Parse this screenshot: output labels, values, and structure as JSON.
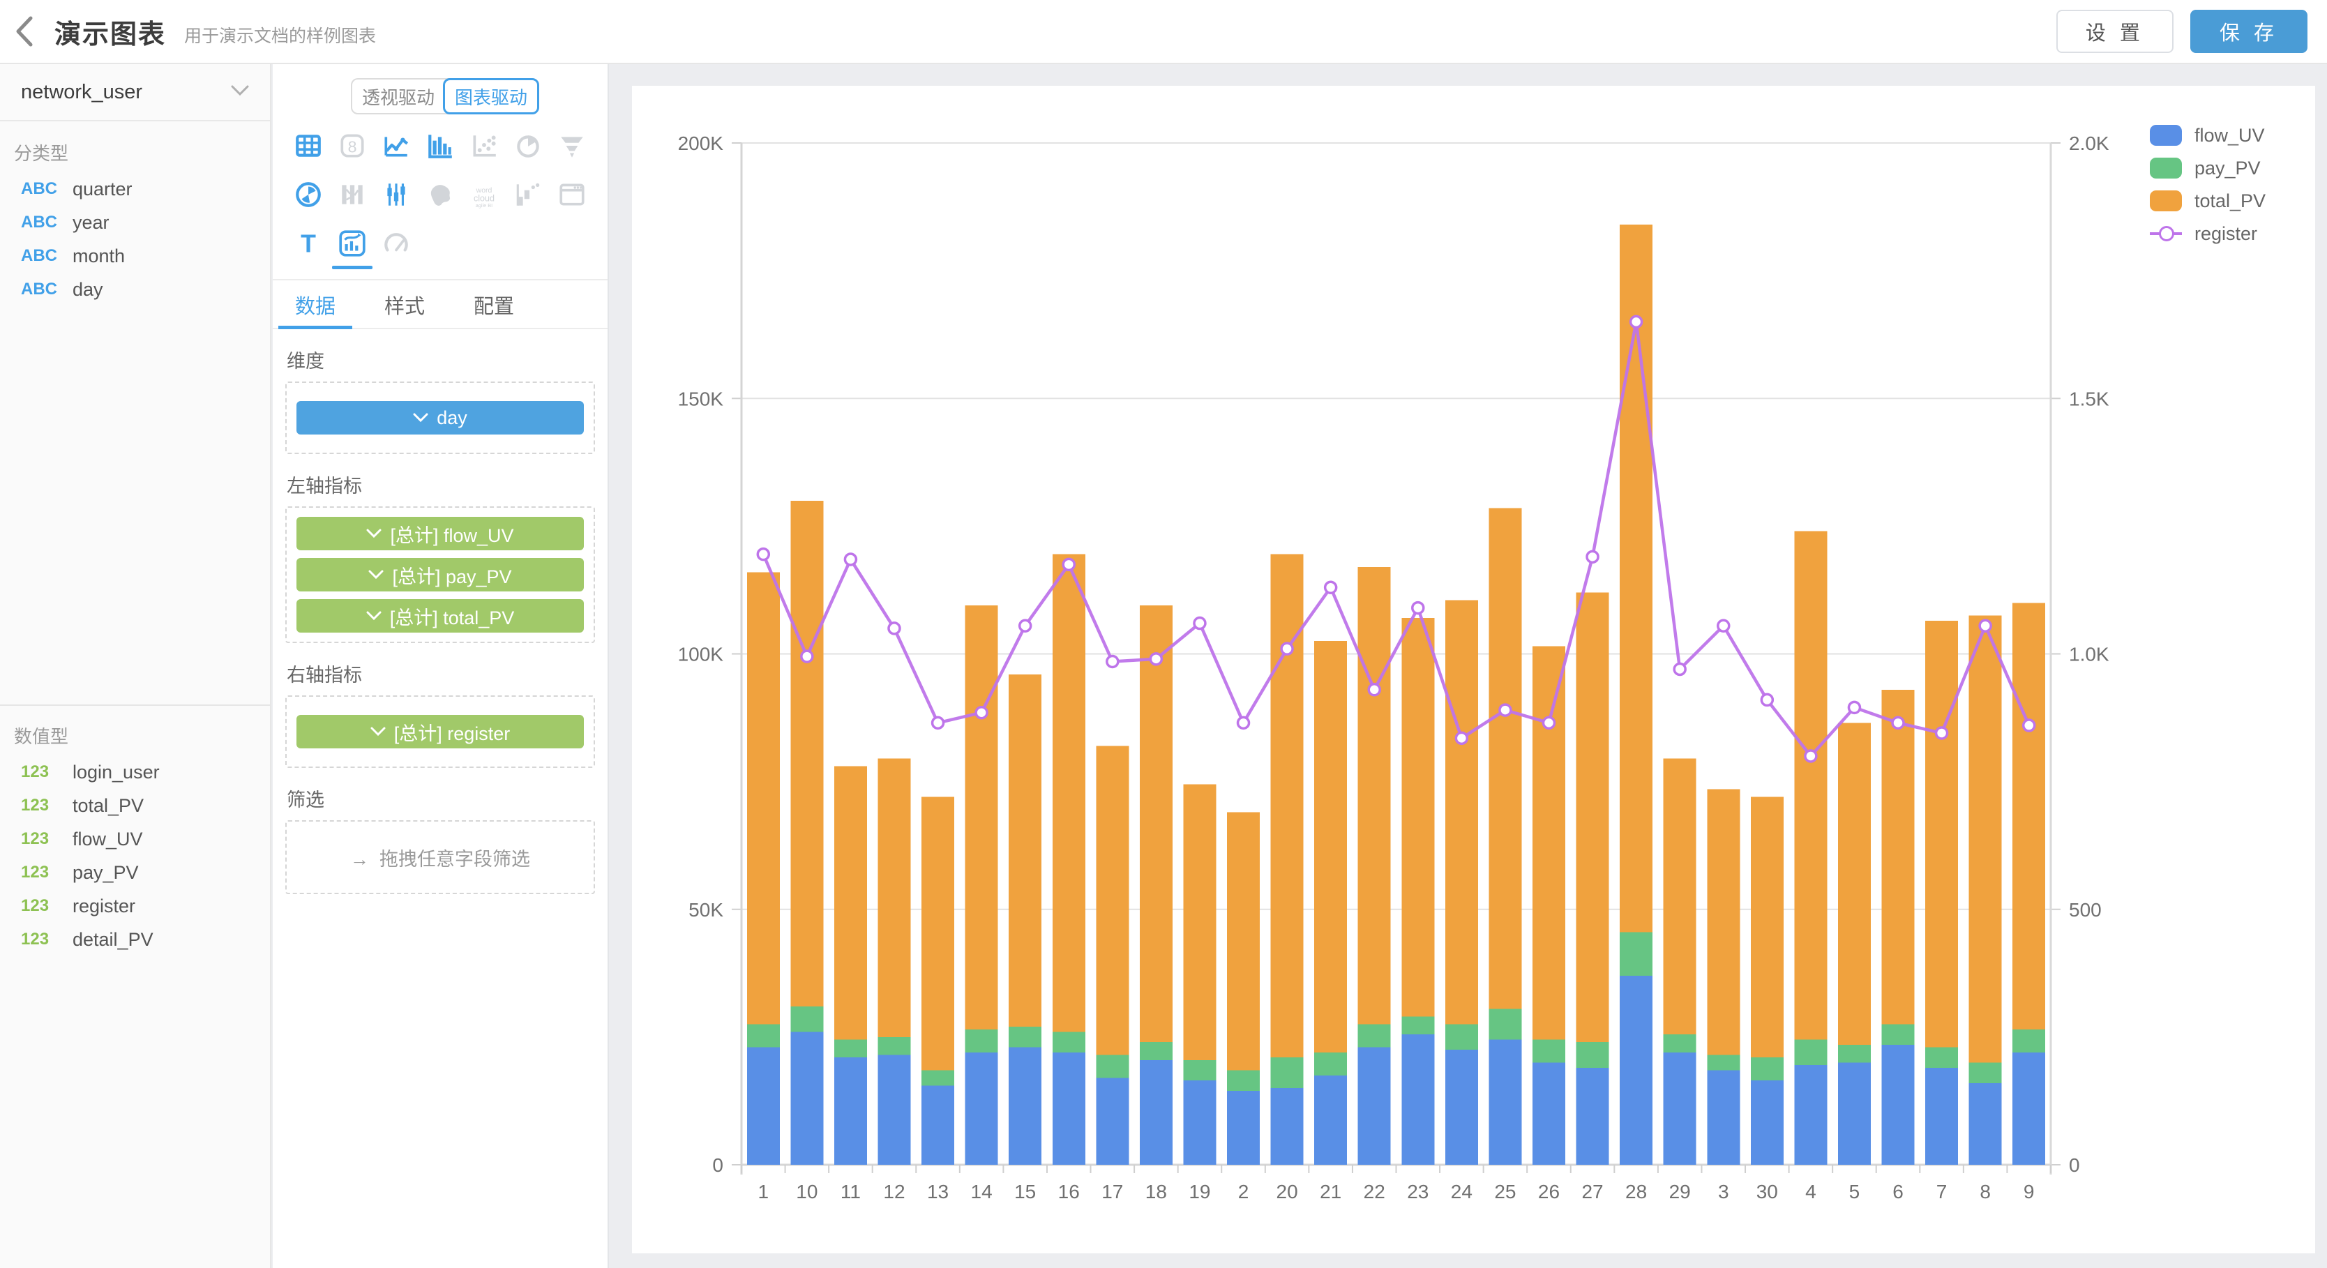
{
  "header": {
    "title": "演示图表",
    "subtitle": "用于演示文档的样例图表",
    "settings_label": "设 置",
    "save_label": "保 存"
  },
  "sidebar": {
    "dataset": "network_user",
    "dimension_section_label": "分类型",
    "dimension_fields": [
      {
        "badge": "ABC",
        "name": "quarter"
      },
      {
        "badge": "ABC",
        "name": "year"
      },
      {
        "badge": "ABC",
        "name": "month"
      },
      {
        "badge": "ABC",
        "name": "day"
      }
    ],
    "measure_section_label": "数值型",
    "measure_fields": [
      {
        "badge": "123",
        "name": "login_user"
      },
      {
        "badge": "123",
        "name": "total_PV"
      },
      {
        "badge": "123",
        "name": "flow_UV"
      },
      {
        "badge": "123",
        "name": "pay_PV"
      },
      {
        "badge": "123",
        "name": "register"
      },
      {
        "badge": "123",
        "name": "detail_PV"
      }
    ]
  },
  "panel": {
    "mode_toggle": {
      "options": [
        "透视驱动",
        "图表驱动"
      ],
      "active": "图表驱动"
    },
    "chart_types": [
      {
        "name": "table",
        "enabled": true,
        "selected": false
      },
      {
        "name": "number",
        "enabled": false,
        "selected": false
      },
      {
        "name": "line",
        "enabled": true,
        "selected": false
      },
      {
        "name": "bar",
        "enabled": true,
        "selected": false
      },
      {
        "name": "scatter",
        "enabled": false,
        "selected": false
      },
      {
        "name": "pie",
        "enabled": false,
        "selected": false
      },
      {
        "name": "funnel",
        "enabled": false,
        "selected": false
      },
      {
        "name": "rose",
        "enabled": true,
        "selected": false
      },
      {
        "name": "sankey",
        "enabled": false,
        "selected": false
      },
      {
        "name": "candlestick",
        "enabled": true,
        "selected": false
      },
      {
        "name": "map",
        "enabled": false,
        "selected": false
      },
      {
        "name": "wordcloud",
        "enabled": false,
        "selected": false
      },
      {
        "name": "waterfall",
        "enabled": false,
        "selected": false
      },
      {
        "name": "iframe",
        "enabled": false,
        "selected": false
      },
      {
        "name": "text",
        "enabled": true,
        "selected": false
      },
      {
        "name": "combo",
        "enabled": true,
        "selected": true
      },
      {
        "name": "gauge",
        "enabled": false,
        "selected": false
      }
    ],
    "tabs": [
      {
        "label": "数据",
        "active": true
      },
      {
        "label": "样式",
        "active": false
      },
      {
        "label": "配置",
        "active": false
      }
    ],
    "sections": {
      "dimension_label": "维度",
      "dimension_pills": [
        "day"
      ],
      "left_axis_label": "左轴指标",
      "left_axis_pills": [
        "[总计] flow_UV",
        "[总计] pay_PV",
        "[总计] total_PV"
      ],
      "right_axis_label": "右轴指标",
      "right_axis_pills": [
        "[总计] register"
      ],
      "filter_label": "筛选",
      "filter_hint": "拖拽任意字段筛选"
    }
  },
  "chart_data": {
    "type": "combo-stacked-bar-line",
    "categories": [
      "1",
      "10",
      "11",
      "12",
      "13",
      "14",
      "15",
      "16",
      "17",
      "18",
      "19",
      "2",
      "20",
      "21",
      "22",
      "23",
      "24",
      "25",
      "26",
      "27",
      "28",
      "29",
      "3",
      "30",
      "4",
      "5",
      "6",
      "7",
      "8",
      "9"
    ],
    "bar_series": [
      {
        "name": "flow_UV",
        "color": "#598fe6",
        "values": [
          23000,
          26000,
          21000,
          21500,
          15500,
          22000,
          23000,
          22000,
          17000,
          20500,
          16500,
          14500,
          15000,
          17500,
          23000,
          25500,
          22500,
          24500,
          20000,
          19000,
          37000,
          22000,
          18500,
          16500,
          19500,
          20000,
          23500,
          19000,
          16000,
          22000
        ]
      },
      {
        "name": "pay_PV",
        "color": "#66c583",
        "values": [
          4500,
          5000,
          3500,
          3500,
          3000,
          4500,
          4000,
          4000,
          4500,
          3500,
          4000,
          4000,
          6000,
          4500,
          4500,
          3500,
          5000,
          6000,
          4500,
          5000,
          8500,
          3500,
          3000,
          4500,
          5000,
          3500,
          4000,
          4000,
          4000,
          4500
        ]
      },
      {
        "name": "total_PV",
        "color": "#f0a23e",
        "values": [
          88500,
          99000,
          53500,
          54500,
          53500,
          83000,
          69000,
          93500,
          60500,
          85500,
          54000,
          50500,
          98500,
          80500,
          89500,
          78000,
          83000,
          98000,
          77000,
          88000,
          138500,
          54000,
          52000,
          51000,
          99500,
          63000,
          65500,
          83500,
          87500,
          83500
        ]
      }
    ],
    "line_series": {
      "name": "register",
      "color": "#be74ea",
      "axis": "right",
      "values": [
        1195,
        995,
        1185,
        1050,
        865,
        885,
        1055,
        1175,
        985,
        990,
        1060,
        865,
        1010,
        1130,
        930,
        1090,
        835,
        890,
        865,
        1190,
        1650,
        970,
        1055,
        910,
        800,
        895,
        865,
        845,
        1055,
        860
      ]
    },
    "left_axis": {
      "range": [
        0,
        200000
      ],
      "tick_labels": [
        "0",
        "50K",
        "100K",
        "150K",
        "200K"
      ]
    },
    "right_axis": {
      "range": [
        0,
        2000
      ],
      "tick_labels": [
        "0",
        "500",
        "1.0K",
        "1.5K",
        "2.0K"
      ]
    },
    "legend": [
      {
        "label": "flow_UV",
        "marker": "rect",
        "color": "#598fe6"
      },
      {
        "label": "pay_PV",
        "marker": "rect",
        "color": "#66c583"
      },
      {
        "label": "total_PV",
        "marker": "rect",
        "color": "#f0a23e"
      },
      {
        "label": "register",
        "marker": "line-circle",
        "color": "#be74ea"
      }
    ],
    "grid": true,
    "legend_position": "top-right",
    "stacked": true
  },
  "colors": {
    "accent_blue": "#41a0e8",
    "save_button": "#4a9cd6",
    "pill_blue": "#4fa3e0",
    "pill_green": "#a1c969",
    "badge_dim": "#41a0e8",
    "badge_num": "#8dc152",
    "grid_line": "#e2e2e2",
    "axis_line": "#d4d4d4",
    "axis_text": "#707070"
  }
}
